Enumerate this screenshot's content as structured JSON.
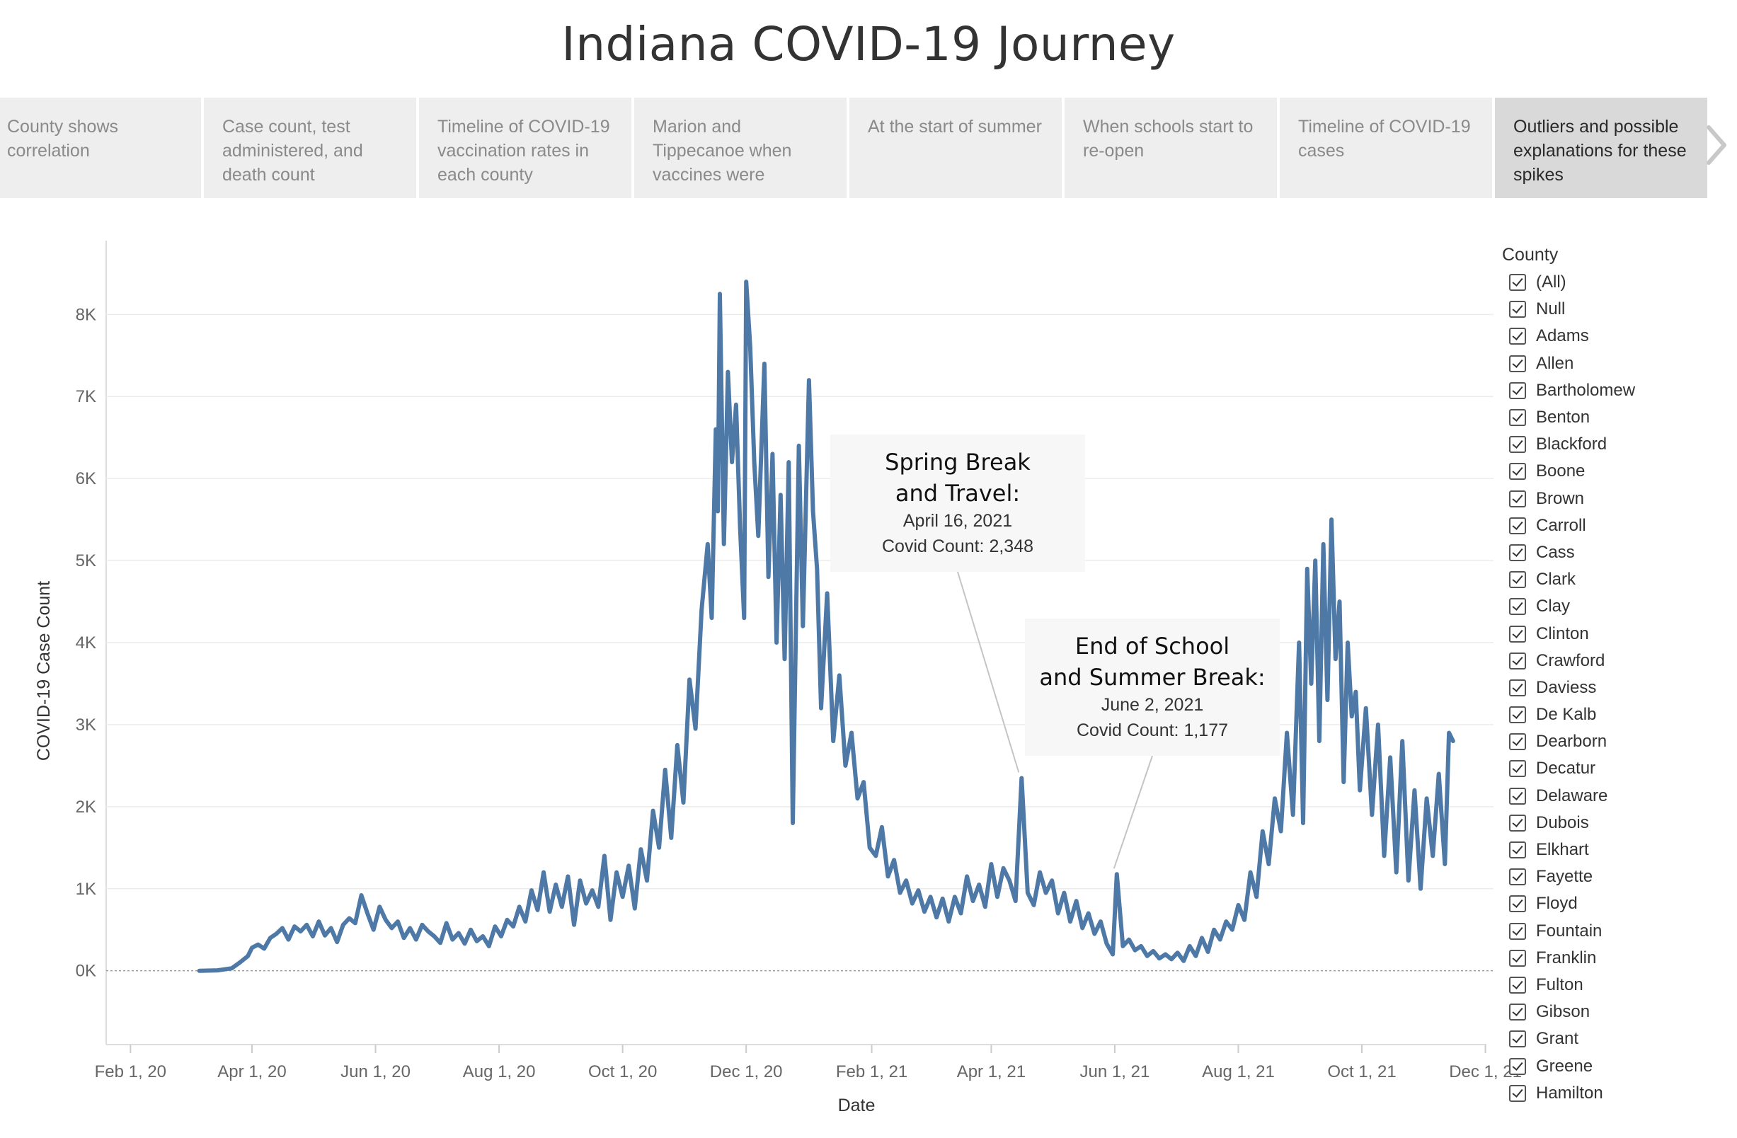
{
  "page": {
    "title": "Indiana COVID-19 Journey"
  },
  "story": {
    "points": [
      {
        "label": "County shows correlation",
        "active": false
      },
      {
        "label": "Case count, test administered, and death count",
        "active": false
      },
      {
        "label": "Timeline of COVID-19 vaccination rates in each county",
        "active": false
      },
      {
        "label": "Marion and Tippecanoe when vaccines were",
        "active": false
      },
      {
        "label": "At the start of summer",
        "active": false
      },
      {
        "label": "When schools start to re-open",
        "active": false
      },
      {
        "label": "Timeline of COVID-19 cases",
        "active": false
      },
      {
        "label": "Outliers and possible explanations for these spikes",
        "active": true
      }
    ]
  },
  "legend": {
    "title": "County",
    "items": [
      "(All)",
      "Null",
      "Adams",
      "Allen",
      "Bartholomew",
      "Benton",
      "Blackford",
      "Boone",
      "Brown",
      "Carroll",
      "Cass",
      "Clark",
      "Clay",
      "Clinton",
      "Crawford",
      "Daviess",
      "De Kalb",
      "Dearborn",
      "Decatur",
      "Delaware",
      "Dubois",
      "Elkhart",
      "Fayette",
      "Floyd",
      "Fountain",
      "Franklin",
      "Fulton",
      "Gibson",
      "Grant",
      "Greene",
      "Hamilton"
    ]
  },
  "colors": {
    "line": "#4e79a7",
    "grid": "#ececec",
    "axis_text": "#666666"
  },
  "chart_data": {
    "type": "line",
    "xlabel": "Date",
    "ylabel": "COVID-19 Case Count",
    "x_ticks": [
      "Feb 1, 20",
      "Apr 1, 20",
      "Jun 1, 20",
      "Aug 1, 20",
      "Oct 1, 20",
      "Dec 1, 20",
      "Feb 1, 21",
      "Apr 1, 21",
      "Jun 1, 21",
      "Aug 1, 21",
      "Oct 1, 21",
      "Dec 1, 21"
    ],
    "x_tick_dates": [
      "2020-02-01",
      "2020-04-01",
      "2020-06-01",
      "2020-08-01",
      "2020-10-01",
      "2020-12-01",
      "2021-02-01",
      "2021-04-01",
      "2021-06-01",
      "2021-08-01",
      "2021-10-01",
      "2021-12-01"
    ],
    "y_ticks": [
      "0K",
      "1K",
      "2K",
      "3K",
      "4K",
      "5K",
      "6K",
      "7K",
      "8K"
    ],
    "y_tick_values": [
      0,
      1000,
      2000,
      3000,
      4000,
      5000,
      6000,
      7000,
      8000
    ],
    "ylim": [
      -900,
      8900
    ],
    "xlim": [
      "2020-01-20",
      "2021-12-05"
    ],
    "grid": true,
    "zero_line": "dotted",
    "series": [
      {
        "points": [
          [
            "2020-03-06",
            0
          ],
          [
            "2020-03-15",
            5
          ],
          [
            "2020-03-22",
            30
          ],
          [
            "2020-03-26",
            100
          ],
          [
            "2020-03-30",
            180
          ],
          [
            "2020-04-01",
            280
          ],
          [
            "2020-04-04",
            320
          ],
          [
            "2020-04-07",
            270
          ],
          [
            "2020-04-10",
            400
          ],
          [
            "2020-04-13",
            450
          ],
          [
            "2020-04-16",
            520
          ],
          [
            "2020-04-19",
            380
          ],
          [
            "2020-04-22",
            540
          ],
          [
            "2020-04-25",
            480
          ],
          [
            "2020-04-28",
            560
          ],
          [
            "2020-05-01",
            420
          ],
          [
            "2020-05-04",
            600
          ],
          [
            "2020-05-07",
            430
          ],
          [
            "2020-05-10",
            520
          ],
          [
            "2020-05-13",
            350
          ],
          [
            "2020-05-16",
            560
          ],
          [
            "2020-05-19",
            640
          ],
          [
            "2020-05-22",
            580
          ],
          [
            "2020-05-25",
            920
          ],
          [
            "2020-05-28",
            700
          ],
          [
            "2020-05-31",
            500
          ],
          [
            "2020-06-03",
            780
          ],
          [
            "2020-06-06",
            620
          ],
          [
            "2020-06-09",
            520
          ],
          [
            "2020-06-12",
            600
          ],
          [
            "2020-06-15",
            400
          ],
          [
            "2020-06-18",
            520
          ],
          [
            "2020-06-21",
            380
          ],
          [
            "2020-06-24",
            560
          ],
          [
            "2020-06-27",
            480
          ],
          [
            "2020-06-30",
            420
          ],
          [
            "2020-07-03",
            340
          ],
          [
            "2020-07-06",
            580
          ],
          [
            "2020-07-09",
            380
          ],
          [
            "2020-07-12",
            460
          ],
          [
            "2020-07-15",
            330
          ],
          [
            "2020-07-18",
            500
          ],
          [
            "2020-07-21",
            360
          ],
          [
            "2020-07-24",
            420
          ],
          [
            "2020-07-27",
            300
          ],
          [
            "2020-07-30",
            540
          ],
          [
            "2020-08-02",
            420
          ],
          [
            "2020-08-05",
            620
          ],
          [
            "2020-08-08",
            540
          ],
          [
            "2020-08-11",
            780
          ],
          [
            "2020-08-14",
            600
          ],
          [
            "2020-08-17",
            980
          ],
          [
            "2020-08-20",
            740
          ],
          [
            "2020-08-23",
            1200
          ],
          [
            "2020-08-26",
            720
          ],
          [
            "2020-08-29",
            1050
          ],
          [
            "2020-09-01",
            780
          ],
          [
            "2020-09-04",
            1150
          ],
          [
            "2020-09-07",
            560
          ],
          [
            "2020-09-10",
            1100
          ],
          [
            "2020-09-13",
            820
          ],
          [
            "2020-09-16",
            980
          ],
          [
            "2020-09-19",
            780
          ],
          [
            "2020-09-22",
            1400
          ],
          [
            "2020-09-25",
            620
          ],
          [
            "2020-09-28",
            1200
          ],
          [
            "2020-10-01",
            900
          ],
          [
            "2020-10-04",
            1280
          ],
          [
            "2020-10-07",
            760
          ],
          [
            "2020-10-10",
            1480
          ],
          [
            "2020-10-13",
            1100
          ],
          [
            "2020-10-16",
            1950
          ],
          [
            "2020-10-19",
            1500
          ],
          [
            "2020-10-22",
            2450
          ],
          [
            "2020-10-25",
            1620
          ],
          [
            "2020-10-28",
            2750
          ],
          [
            "2020-10-31",
            2050
          ],
          [
            "2020-11-03",
            3550
          ],
          [
            "2020-11-06",
            2950
          ],
          [
            "2020-11-09",
            4400
          ],
          [
            "2020-11-12",
            5200
          ],
          [
            "2020-11-14",
            4300
          ],
          [
            "2020-11-16",
            6600
          ],
          [
            "2020-11-17",
            5600
          ],
          [
            "2020-11-18",
            8250
          ],
          [
            "2020-11-20",
            5200
          ],
          [
            "2020-11-22",
            7300
          ],
          [
            "2020-11-24",
            6200
          ],
          [
            "2020-11-26",
            6900
          ],
          [
            "2020-11-28",
            5400
          ],
          [
            "2020-11-30",
            4300
          ],
          [
            "2020-12-01",
            8400
          ],
          [
            "2020-12-03",
            7600
          ],
          [
            "2020-12-05",
            6200
          ],
          [
            "2020-12-07",
            5300
          ],
          [
            "2020-12-10",
            7400
          ],
          [
            "2020-12-12",
            4800
          ],
          [
            "2020-12-14",
            6300
          ],
          [
            "2020-12-16",
            4000
          ],
          [
            "2020-12-18",
            5800
          ],
          [
            "2020-12-20",
            3800
          ],
          [
            "2020-12-22",
            6200
          ],
          [
            "2020-12-24",
            1800
          ],
          [
            "2020-12-27",
            6400
          ],
          [
            "2020-12-29",
            4200
          ],
          [
            "2021-01-01",
            7200
          ],
          [
            "2021-01-03",
            5600
          ],
          [
            "2021-01-05",
            4900
          ],
          [
            "2021-01-07",
            3200
          ],
          [
            "2021-01-10",
            4600
          ],
          [
            "2021-01-13",
            2800
          ],
          [
            "2021-01-16",
            3600
          ],
          [
            "2021-01-19",
            2500
          ],
          [
            "2021-01-22",
            2900
          ],
          [
            "2021-01-25",
            2100
          ],
          [
            "2021-01-28",
            2300
          ],
          [
            "2021-01-31",
            1500
          ],
          [
            "2021-02-03",
            1400
          ],
          [
            "2021-02-06",
            1750
          ],
          [
            "2021-02-09",
            1150
          ],
          [
            "2021-02-12",
            1350
          ],
          [
            "2021-02-15",
            950
          ],
          [
            "2021-02-18",
            1100
          ],
          [
            "2021-02-21",
            820
          ],
          [
            "2021-02-24",
            980
          ],
          [
            "2021-02-27",
            720
          ],
          [
            "2021-03-02",
            900
          ],
          [
            "2021-03-05",
            650
          ],
          [
            "2021-03-08",
            880
          ],
          [
            "2021-03-11",
            600
          ],
          [
            "2021-03-14",
            900
          ],
          [
            "2021-03-17",
            700
          ],
          [
            "2021-03-20",
            1150
          ],
          [
            "2021-03-23",
            850
          ],
          [
            "2021-03-26",
            1050
          ],
          [
            "2021-03-29",
            780
          ],
          [
            "2021-04-01",
            1300
          ],
          [
            "2021-04-04",
            900
          ],
          [
            "2021-04-07",
            1250
          ],
          [
            "2021-04-10",
            1100
          ],
          [
            "2021-04-13",
            850
          ],
          [
            "2021-04-16",
            2348
          ],
          [
            "2021-04-19",
            950
          ],
          [
            "2021-04-22",
            800
          ],
          [
            "2021-04-25",
            1200
          ],
          [
            "2021-04-28",
            950
          ],
          [
            "2021-05-01",
            1100
          ],
          [
            "2021-05-04",
            700
          ],
          [
            "2021-05-07",
            950
          ],
          [
            "2021-05-10",
            600
          ],
          [
            "2021-05-13",
            850
          ],
          [
            "2021-05-16",
            520
          ],
          [
            "2021-05-19",
            700
          ],
          [
            "2021-05-22",
            450
          ],
          [
            "2021-05-25",
            600
          ],
          [
            "2021-05-28",
            330
          ],
          [
            "2021-05-31",
            200
          ],
          [
            "2021-06-02",
            1177
          ],
          [
            "2021-06-05",
            300
          ],
          [
            "2021-06-08",
            380
          ],
          [
            "2021-06-11",
            250
          ],
          [
            "2021-06-14",
            300
          ],
          [
            "2021-06-17",
            180
          ],
          [
            "2021-06-20",
            240
          ],
          [
            "2021-06-23",
            150
          ],
          [
            "2021-06-26",
            200
          ],
          [
            "2021-06-29",
            140
          ],
          [
            "2021-07-02",
            220
          ],
          [
            "2021-07-05",
            120
          ],
          [
            "2021-07-08",
            300
          ],
          [
            "2021-07-11",
            180
          ],
          [
            "2021-07-14",
            400
          ],
          [
            "2021-07-17",
            230
          ],
          [
            "2021-07-20",
            500
          ],
          [
            "2021-07-23",
            380
          ],
          [
            "2021-07-26",
            600
          ],
          [
            "2021-07-29",
            500
          ],
          [
            "2021-08-01",
            800
          ],
          [
            "2021-08-04",
            620
          ],
          [
            "2021-08-07",
            1200
          ],
          [
            "2021-08-10",
            900
          ],
          [
            "2021-08-13",
            1700
          ],
          [
            "2021-08-16",
            1300
          ],
          [
            "2021-08-19",
            2100
          ],
          [
            "2021-08-22",
            1700
          ],
          [
            "2021-08-25",
            2900
          ],
          [
            "2021-08-28",
            1900
          ],
          [
            "2021-08-31",
            4000
          ],
          [
            "2021-09-02",
            1800
          ],
          [
            "2021-09-04",
            4900
          ],
          [
            "2021-09-06",
            3500
          ],
          [
            "2021-09-08",
            5000
          ],
          [
            "2021-09-10",
            2800
          ],
          [
            "2021-09-12",
            5200
          ],
          [
            "2021-09-14",
            3300
          ],
          [
            "2021-09-16",
            5500
          ],
          [
            "2021-09-18",
            3800
          ],
          [
            "2021-09-20",
            4500
          ],
          [
            "2021-09-22",
            2300
          ],
          [
            "2021-09-24",
            4000
          ],
          [
            "2021-09-26",
            3100
          ],
          [
            "2021-09-28",
            3400
          ],
          [
            "2021-09-30",
            2200
          ],
          [
            "2021-10-03",
            3200
          ],
          [
            "2021-10-06",
            1900
          ],
          [
            "2021-10-09",
            3000
          ],
          [
            "2021-10-12",
            1400
          ],
          [
            "2021-10-15",
            2600
          ],
          [
            "2021-10-18",
            1200
          ],
          [
            "2021-10-21",
            2800
          ],
          [
            "2021-10-24",
            1100
          ],
          [
            "2021-10-27",
            2200
          ],
          [
            "2021-10-30",
            1000
          ],
          [
            "2021-11-02",
            2100
          ],
          [
            "2021-11-05",
            1400
          ],
          [
            "2021-11-08",
            2400
          ],
          [
            "2021-11-11",
            1300
          ],
          [
            "2021-11-13",
            2900
          ],
          [
            "2021-11-15",
            2800
          ]
        ]
      }
    ],
    "annotations": [
      {
        "title": "Spring Break and Travel:",
        "date_label": "April 16, 2021",
        "count_label": "Covid Count: 2,348",
        "date": "2021-04-16",
        "value": 2348
      },
      {
        "title": "End of School and Summer Break:",
        "date_label": "June 2, 2021",
        "count_label": "Covid Count: 1,177",
        "date": "2021-06-02",
        "value": 1177
      }
    ]
  }
}
